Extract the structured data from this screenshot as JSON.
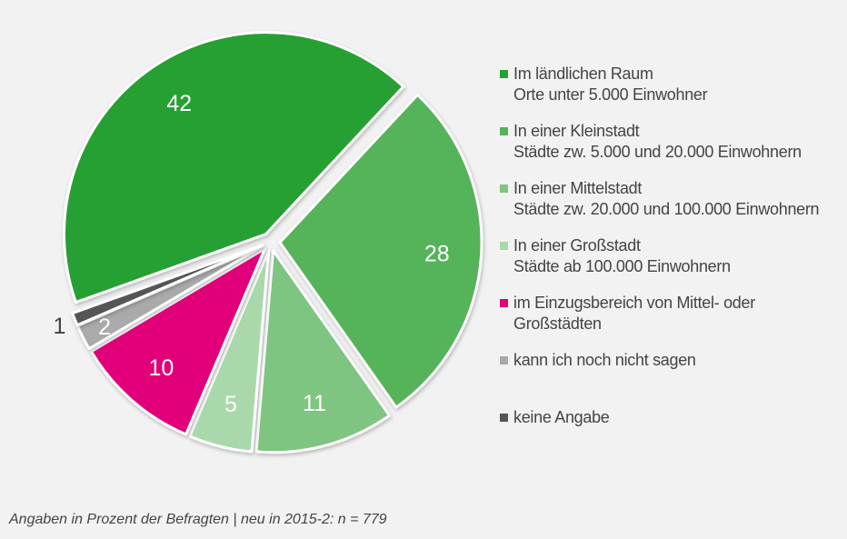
{
  "chart_data": {
    "type": "pie",
    "title": "",
    "unit": "Prozent",
    "slices": [
      {
        "label": "In einer Kleinstadt",
        "sublabel": "Städte zw. 5.000 und 20.000 Einwohnern",
        "value": 28,
        "color": "#55b35a"
      },
      {
        "label": "In einer Mittelstadt",
        "sublabel": "Städte zw. 20.000 und 100.000 Einwohnern",
        "value": 11,
        "color": "#7dc580"
      },
      {
        "label": "In einer Großstadt",
        "sublabel": "Städte ab 100.000 Einwohnern",
        "value": 5,
        "color": "#a9d9aa"
      },
      {
        "label": "im Einzugsbereich von Mittel- oder",
        "sublabel": "Großstädten",
        "value": 10,
        "color": "#e2007a"
      },
      {
        "label": "kann ich noch nicht sagen",
        "sublabel": "",
        "value": 2,
        "color": "#aaaaaa"
      },
      {
        "label": "keine Angabe",
        "sublabel": "",
        "value": 1,
        "color": "#555555"
      },
      {
        "label": "Im ländlichen Raum",
        "sublabel": "Orte unter 5.000 Einwohner",
        "value": 42,
        "color": "#27a032"
      }
    ],
    "legend_order": [
      6,
      0,
      1,
      2,
      3,
      4,
      5
    ],
    "legend_placement": "right"
  },
  "footnote": "Angaben in Prozent der Befragten | neu in 2015-2: n = 779"
}
